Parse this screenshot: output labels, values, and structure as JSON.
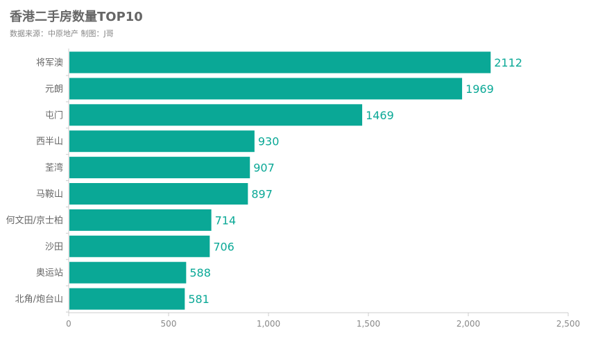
{
  "chart_data": {
    "type": "bar",
    "orientation": "horizontal",
    "title": "香港二手房数量TOP10",
    "subtitle": "数据来源：中原地产  制图：J哥",
    "categories": [
      "将军澳",
      "元朗",
      "屯门",
      "西半山",
      "荃湾",
      "马鞍山",
      "何文田/京士柏",
      "沙田",
      "奥运站",
      "北角/炮台山"
    ],
    "values": [
      2112,
      1969,
      1469,
      930,
      907,
      897,
      714,
      706,
      588,
      581
    ],
    "xlim": [
      0,
      2500
    ],
    "x_ticks": [
      "0",
      "500",
      "1,000",
      "1,500",
      "2,000",
      "2,500"
    ],
    "x_tick_values": [
      0,
      500,
      1000,
      1500,
      2000,
      2500
    ],
    "grid": false,
    "bar_color": "#0aa896",
    "label_color": "#0aa896"
  }
}
